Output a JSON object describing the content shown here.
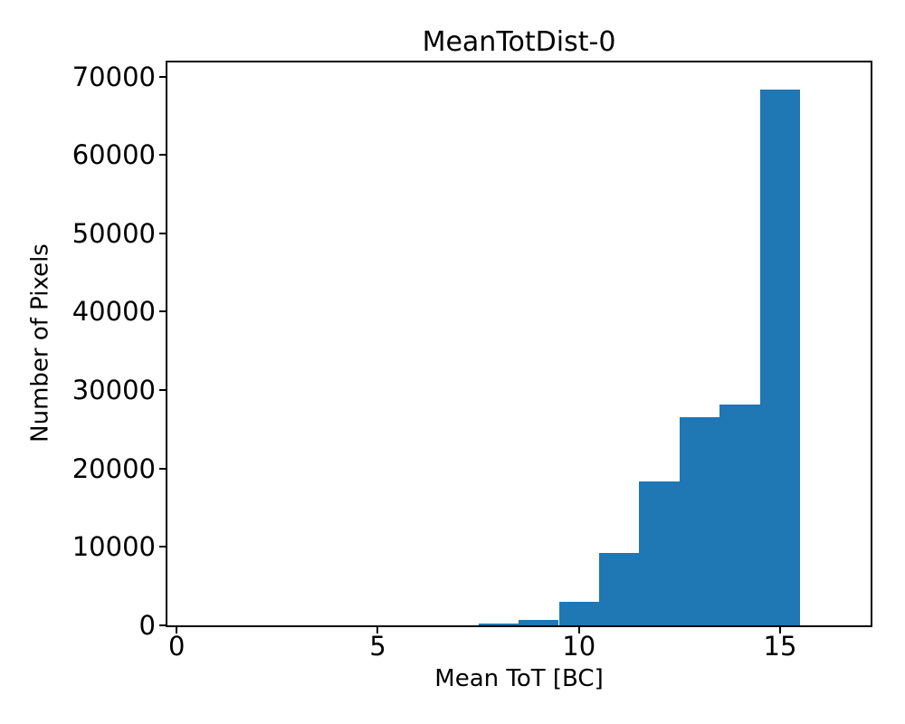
{
  "figure": {
    "title": "MeanTotDist-0",
    "xlabel": "Mean ToT [BC]",
    "ylabel": "Number of Pixels",
    "background_color": "#ffffff",
    "text_color": "#000000"
  },
  "chart_data": {
    "type": "bar",
    "subtype": "histogram",
    "title": "MeanTotDist-0",
    "xlabel": "Mean ToT [BC]",
    "ylabel": "Number of Pixels",
    "bar_color": "#1f77b4",
    "bin_edges": [
      7.5,
      8.5,
      9.5,
      10.5,
      11.5,
      12.5,
      13.5,
      14.5,
      15.5
    ],
    "counts": [
      250,
      700,
      3000,
      9200,
      18300,
      26500,
      28200,
      68300
    ],
    "xlim": [
      -0.23,
      17.25
    ],
    "ylim": [
      0,
      71800
    ],
    "xticks": {
      "values": [
        0,
        5,
        10,
        15
      ],
      "labels": [
        "0",
        "5",
        "10",
        "15"
      ]
    },
    "yticks": {
      "values": [
        0,
        10000,
        20000,
        30000,
        40000,
        50000,
        60000,
        70000
      ],
      "labels": [
        "0",
        "10000",
        "20000",
        "30000",
        "40000",
        "50000",
        "60000",
        "70000"
      ]
    },
    "grid": false,
    "legend": null
  }
}
